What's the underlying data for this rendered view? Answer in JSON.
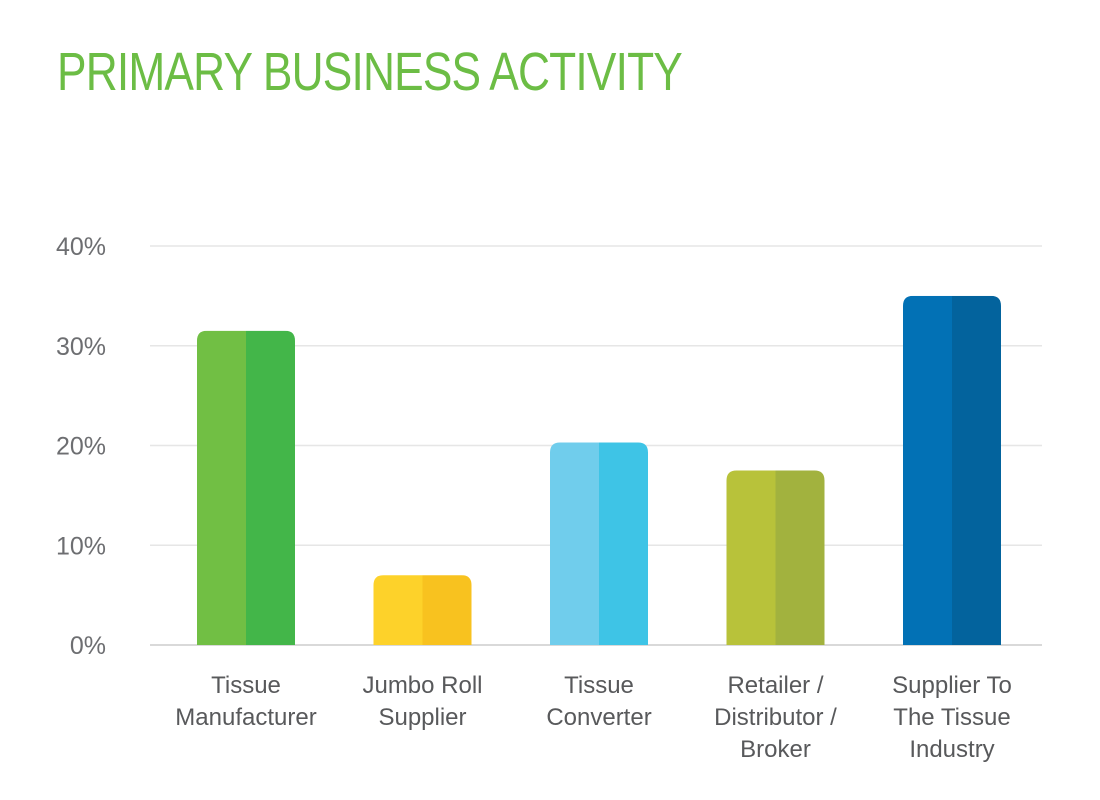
{
  "chart_data": {
    "type": "bar",
    "title": "PRIMARY BUSINESS ACTIVITY",
    "xlabel": "",
    "ylabel": "",
    "categories": [
      [
        "Tissue",
        "Manufacturer"
      ],
      [
        "Jumbo Roll",
        "Supplier"
      ],
      [
        "Tissue",
        "Converter"
      ],
      [
        "Retailer /",
        "Distributor /",
        "Broker"
      ],
      [
        "Supplier To",
        "The Tissue",
        "Industry"
      ]
    ],
    "values": [
      31.5,
      7.0,
      20.3,
      17.5,
      35.0
    ],
    "ylim": [
      0,
      40
    ],
    "yticks": [
      0,
      10,
      20,
      30,
      40
    ],
    "ytick_labels": [
      "0%",
      "10%",
      "20%",
      "30%",
      "40%"
    ],
    "grid": true,
    "legend": "none",
    "colors": [
      {
        "left": "#71bf44",
        "right": "#43b649"
      },
      {
        "left": "#fdd22a",
        "right": "#f8c21f"
      },
      {
        "left": "#70cdec",
        "right": "#3ec4e6"
      },
      {
        "left": "#b8c23a",
        "right": "#a2b23e"
      },
      {
        "left": "#0271b5",
        "right": "#03639d"
      }
    ],
    "title_color": "#6cbd45"
  }
}
